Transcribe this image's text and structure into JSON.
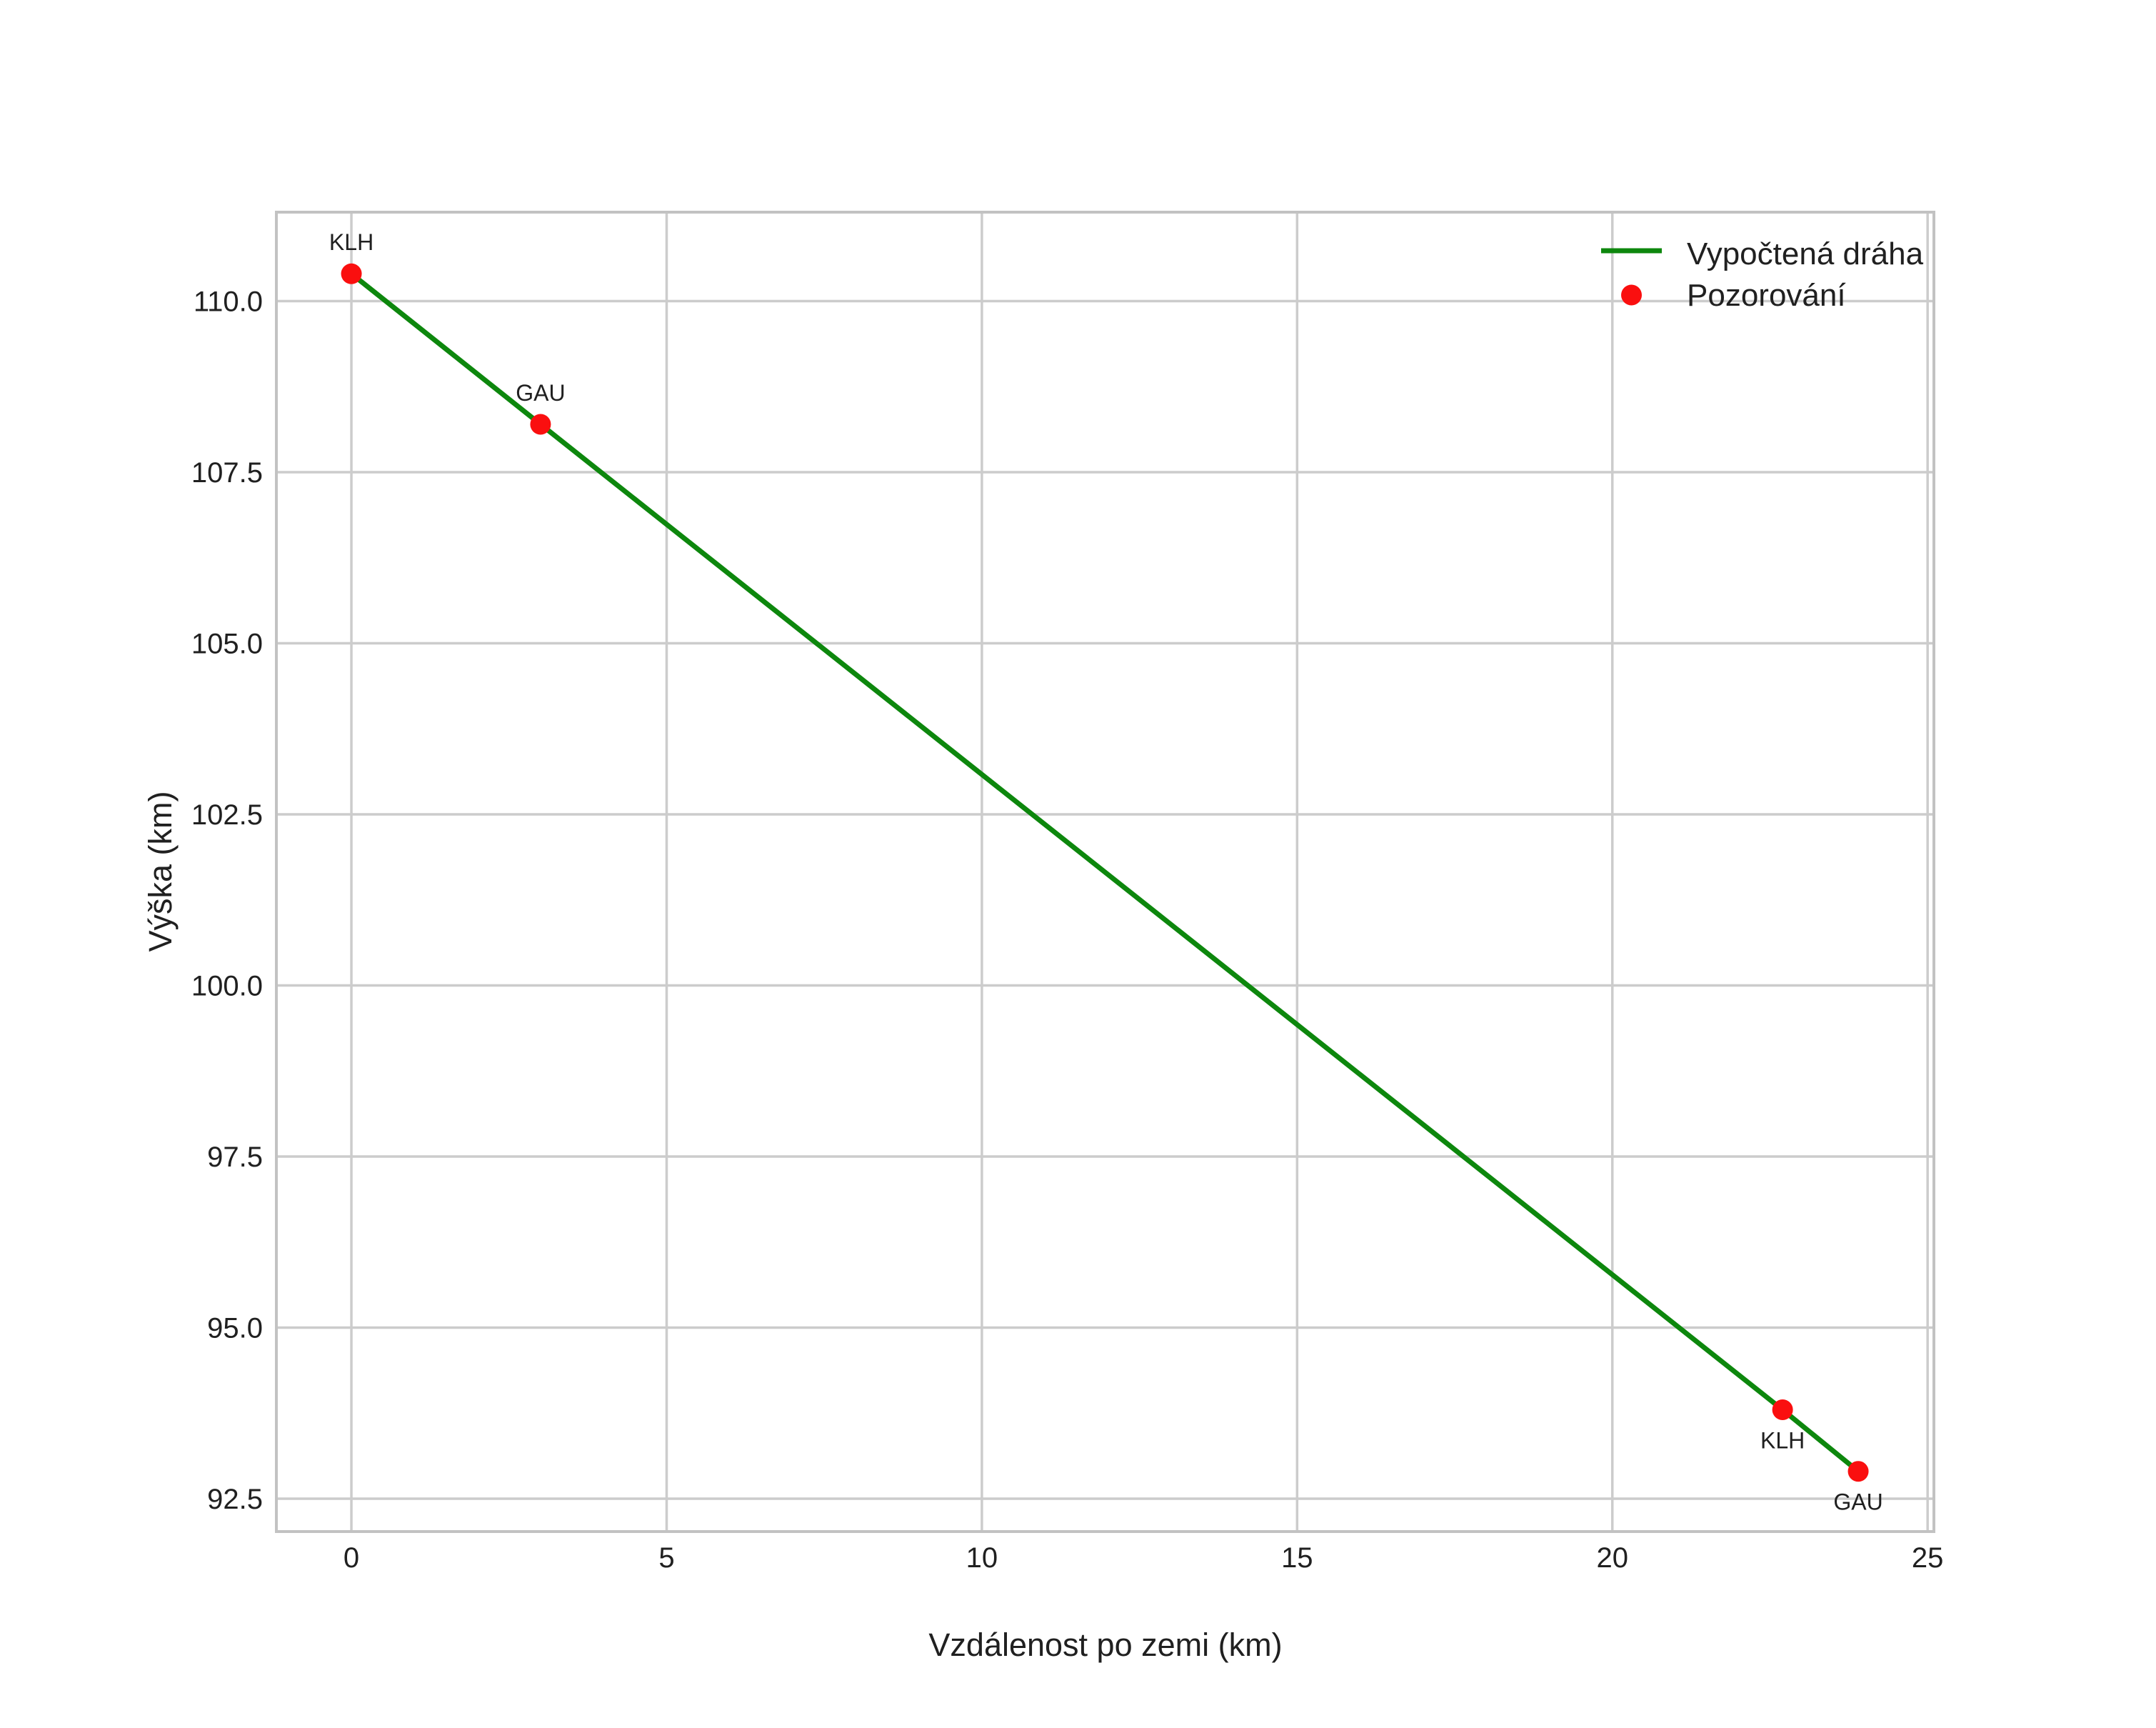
{
  "chart_data": {
    "type": "line",
    "title": "",
    "xlabel": "Vzdálenost po zemi (km)",
    "ylabel": "Výška (km)",
    "xlim": [
      -1.19,
      25.1
    ],
    "ylim": [
      92.02,
      111.3
    ],
    "xticks": [
      "0",
      "5",
      "10",
      "15",
      "20",
      "25"
    ],
    "yticks": [
      "92.5",
      "95.0",
      "97.5",
      "100.0",
      "102.5",
      "105.0",
      "107.5",
      "110.0"
    ],
    "grid": true,
    "legend_position": "upper right",
    "colors": {
      "trajectory_green": "#0d870d",
      "observation_red": "#fa0f0f",
      "grid_gray": "#cccccc",
      "text_dark": "#202020"
    },
    "series": [
      {
        "name": "Vypočtená dráha",
        "kind": "line",
        "color": "#0d870d",
        "points": [
          [
            0.0,
            110.4
          ],
          [
            3.0,
            108.2
          ],
          [
            22.7,
            93.8
          ],
          [
            23.9,
            92.9
          ]
        ]
      },
      {
        "name": "Pozorování",
        "kind": "scatter",
        "color": "#fa0f0f",
        "points": [
          {
            "x": 0.0,
            "y": 110.4,
            "label": "KLH",
            "label_pos": "above"
          },
          {
            "x": 3.0,
            "y": 108.2,
            "label": "GAU",
            "label_pos": "above"
          },
          {
            "x": 22.7,
            "y": 93.8,
            "label": "KLH",
            "label_pos": "below"
          },
          {
            "x": 23.9,
            "y": 92.9,
            "label": "GAU",
            "label_pos": "below"
          }
        ]
      }
    ],
    "legend": {
      "items": [
        "Vypočtená dráha",
        "Pozorování"
      ]
    }
  }
}
